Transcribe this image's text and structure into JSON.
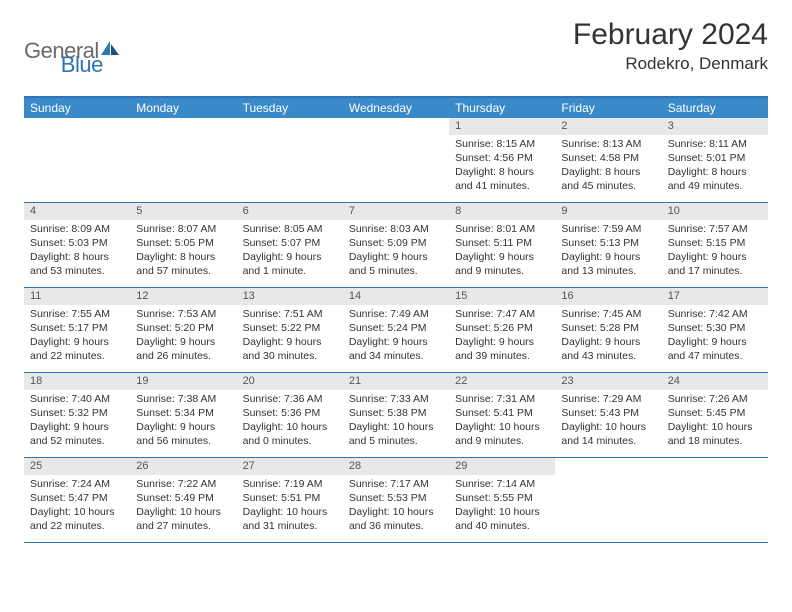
{
  "logo": {
    "general": "General",
    "blue": "Blue"
  },
  "title": "February 2024",
  "location": "Rodekro, Denmark",
  "weekdays": [
    "Sunday",
    "Monday",
    "Tuesday",
    "Wednesday",
    "Thursday",
    "Friday",
    "Saturday"
  ],
  "colors": {
    "header_bg": "#3a8ac9",
    "border": "#2f74b5",
    "daynum_bg": "#e8e8e8",
    "text": "#333333",
    "logo_gray": "#6a6a6a",
    "logo_blue": "#2f74b5"
  },
  "weeks": [
    [
      {
        "n": "",
        "sr": "",
        "ss": "",
        "dl": ""
      },
      {
        "n": "",
        "sr": "",
        "ss": "",
        "dl": ""
      },
      {
        "n": "",
        "sr": "",
        "ss": "",
        "dl": ""
      },
      {
        "n": "",
        "sr": "",
        "ss": "",
        "dl": ""
      },
      {
        "n": "1",
        "sr": "Sunrise: 8:15 AM",
        "ss": "Sunset: 4:56 PM",
        "dl": "Daylight: 8 hours and 41 minutes."
      },
      {
        "n": "2",
        "sr": "Sunrise: 8:13 AM",
        "ss": "Sunset: 4:58 PM",
        "dl": "Daylight: 8 hours and 45 minutes."
      },
      {
        "n": "3",
        "sr": "Sunrise: 8:11 AM",
        "ss": "Sunset: 5:01 PM",
        "dl": "Daylight: 8 hours and 49 minutes."
      }
    ],
    [
      {
        "n": "4",
        "sr": "Sunrise: 8:09 AM",
        "ss": "Sunset: 5:03 PM",
        "dl": "Daylight: 8 hours and 53 minutes."
      },
      {
        "n": "5",
        "sr": "Sunrise: 8:07 AM",
        "ss": "Sunset: 5:05 PM",
        "dl": "Daylight: 8 hours and 57 minutes."
      },
      {
        "n": "6",
        "sr": "Sunrise: 8:05 AM",
        "ss": "Sunset: 5:07 PM",
        "dl": "Daylight: 9 hours and 1 minute."
      },
      {
        "n": "7",
        "sr": "Sunrise: 8:03 AM",
        "ss": "Sunset: 5:09 PM",
        "dl": "Daylight: 9 hours and 5 minutes."
      },
      {
        "n": "8",
        "sr": "Sunrise: 8:01 AM",
        "ss": "Sunset: 5:11 PM",
        "dl": "Daylight: 9 hours and 9 minutes."
      },
      {
        "n": "9",
        "sr": "Sunrise: 7:59 AM",
        "ss": "Sunset: 5:13 PM",
        "dl": "Daylight: 9 hours and 13 minutes."
      },
      {
        "n": "10",
        "sr": "Sunrise: 7:57 AM",
        "ss": "Sunset: 5:15 PM",
        "dl": "Daylight: 9 hours and 17 minutes."
      }
    ],
    [
      {
        "n": "11",
        "sr": "Sunrise: 7:55 AM",
        "ss": "Sunset: 5:17 PM",
        "dl": "Daylight: 9 hours and 22 minutes."
      },
      {
        "n": "12",
        "sr": "Sunrise: 7:53 AM",
        "ss": "Sunset: 5:20 PM",
        "dl": "Daylight: 9 hours and 26 minutes."
      },
      {
        "n": "13",
        "sr": "Sunrise: 7:51 AM",
        "ss": "Sunset: 5:22 PM",
        "dl": "Daylight: 9 hours and 30 minutes."
      },
      {
        "n": "14",
        "sr": "Sunrise: 7:49 AM",
        "ss": "Sunset: 5:24 PM",
        "dl": "Daylight: 9 hours and 34 minutes."
      },
      {
        "n": "15",
        "sr": "Sunrise: 7:47 AM",
        "ss": "Sunset: 5:26 PM",
        "dl": "Daylight: 9 hours and 39 minutes."
      },
      {
        "n": "16",
        "sr": "Sunrise: 7:45 AM",
        "ss": "Sunset: 5:28 PM",
        "dl": "Daylight: 9 hours and 43 minutes."
      },
      {
        "n": "17",
        "sr": "Sunrise: 7:42 AM",
        "ss": "Sunset: 5:30 PM",
        "dl": "Daylight: 9 hours and 47 minutes."
      }
    ],
    [
      {
        "n": "18",
        "sr": "Sunrise: 7:40 AM",
        "ss": "Sunset: 5:32 PM",
        "dl": "Daylight: 9 hours and 52 minutes."
      },
      {
        "n": "19",
        "sr": "Sunrise: 7:38 AM",
        "ss": "Sunset: 5:34 PM",
        "dl": "Daylight: 9 hours and 56 minutes."
      },
      {
        "n": "20",
        "sr": "Sunrise: 7:36 AM",
        "ss": "Sunset: 5:36 PM",
        "dl": "Daylight: 10 hours and 0 minutes."
      },
      {
        "n": "21",
        "sr": "Sunrise: 7:33 AM",
        "ss": "Sunset: 5:38 PM",
        "dl": "Daylight: 10 hours and 5 minutes."
      },
      {
        "n": "22",
        "sr": "Sunrise: 7:31 AM",
        "ss": "Sunset: 5:41 PM",
        "dl": "Daylight: 10 hours and 9 minutes."
      },
      {
        "n": "23",
        "sr": "Sunrise: 7:29 AM",
        "ss": "Sunset: 5:43 PM",
        "dl": "Daylight: 10 hours and 14 minutes."
      },
      {
        "n": "24",
        "sr": "Sunrise: 7:26 AM",
        "ss": "Sunset: 5:45 PM",
        "dl": "Daylight: 10 hours and 18 minutes."
      }
    ],
    [
      {
        "n": "25",
        "sr": "Sunrise: 7:24 AM",
        "ss": "Sunset: 5:47 PM",
        "dl": "Daylight: 10 hours and 22 minutes."
      },
      {
        "n": "26",
        "sr": "Sunrise: 7:22 AM",
        "ss": "Sunset: 5:49 PM",
        "dl": "Daylight: 10 hours and 27 minutes."
      },
      {
        "n": "27",
        "sr": "Sunrise: 7:19 AM",
        "ss": "Sunset: 5:51 PM",
        "dl": "Daylight: 10 hours and 31 minutes."
      },
      {
        "n": "28",
        "sr": "Sunrise: 7:17 AM",
        "ss": "Sunset: 5:53 PM",
        "dl": "Daylight: 10 hours and 36 minutes."
      },
      {
        "n": "29",
        "sr": "Sunrise: 7:14 AM",
        "ss": "Sunset: 5:55 PM",
        "dl": "Daylight: 10 hours and 40 minutes."
      },
      {
        "n": "",
        "sr": "",
        "ss": "",
        "dl": ""
      },
      {
        "n": "",
        "sr": "",
        "ss": "",
        "dl": ""
      }
    ]
  ]
}
